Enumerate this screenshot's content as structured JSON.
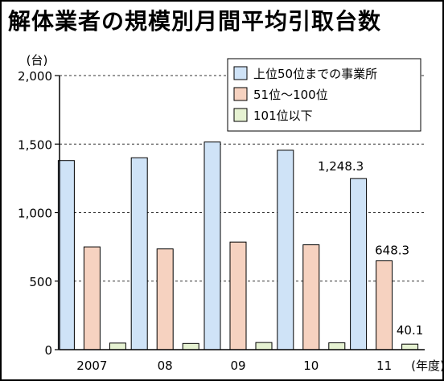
{
  "title": "解体業者の規模別月間平均引取台数",
  "chart_data": {
    "type": "bar",
    "categories": [
      "2007",
      "08",
      "09",
      "10",
      "11"
    ],
    "xlabel_suffix": "(年度)",
    "ylabel": "(台)",
    "ylim": [
      0,
      2000
    ],
    "yticks": [
      "2,000",
      "1,500",
      "1,000",
      "500",
      "0"
    ],
    "ytick_values": [
      2000,
      1500,
      1000,
      500,
      0
    ],
    "grid": "horizontal dashed",
    "legend_position": "top-right",
    "series": [
      {
        "name": "上位50位までの事業所",
        "color": "#cfe3f7",
        "values": [
          1380,
          1400,
          1515,
          1455,
          1248.3
        ]
      },
      {
        "name": "51位〜100位",
        "color": "#f6d2c0",
        "values": [
          750,
          735,
          785,
          765,
          648.3
        ]
      },
      {
        "name": "101位以下",
        "color": "#e6f2d2",
        "values": [
          48,
          45,
          52,
          50,
          40.1
        ]
      }
    ],
    "annotations": [
      {
        "series": 0,
        "index": 4,
        "text": "1,248.3"
      },
      {
        "series": 1,
        "index": 4,
        "text": "648.3"
      },
      {
        "series": 2,
        "index": 4,
        "text": "40.1"
      }
    ]
  }
}
